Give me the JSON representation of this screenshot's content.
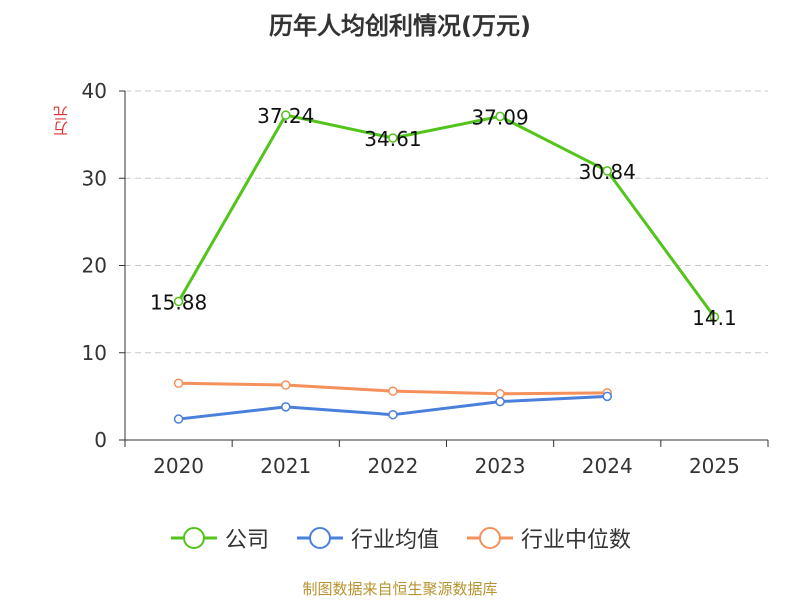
{
  "chart_data": {
    "type": "line",
    "title": "历年人均创利情况(万元)",
    "ylabel": "万元",
    "xlabel": "",
    "categories": [
      "2020",
      "2021",
      "2022",
      "2023",
      "2024",
      "2025"
    ],
    "ylim": [
      0,
      40
    ],
    "yticks": [
      0,
      10,
      20,
      30,
      40
    ],
    "grid": true,
    "legend_position": "bottom",
    "series": [
      {
        "name": "公司",
        "color": "#52c41a",
        "values": [
          15.88,
          37.24,
          34.61,
          37.09,
          30.84,
          14.1
        ],
        "labels": [
          "15.88",
          "37.24",
          "34.61",
          "37.09",
          "30.84",
          "14.1"
        ]
      },
      {
        "name": "行业均值",
        "color": "#4a7fdc",
        "values": [
          2.4,
          3.8,
          2.9,
          4.4,
          5.0,
          null
        ]
      },
      {
        "name": "行业中位数",
        "color": "#f5905a",
        "values": [
          6.5,
          6.3,
          5.6,
          5.3,
          5.4,
          null
        ]
      }
    ]
  },
  "source": "制图数据来自恒生聚源数据库"
}
